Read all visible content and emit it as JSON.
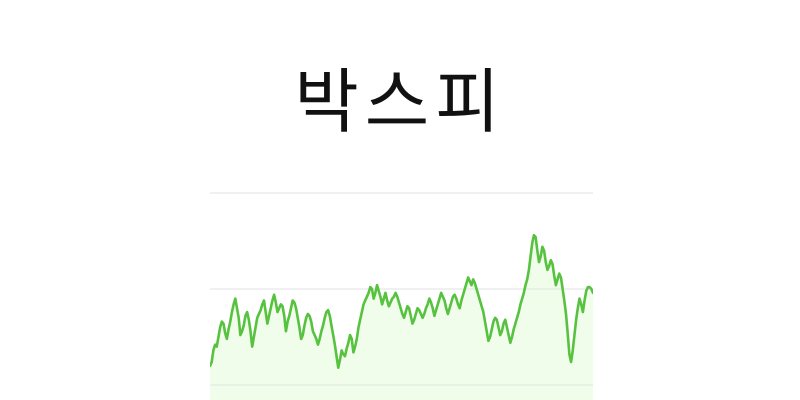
{
  "title": "박스피",
  "colors": {
    "background": "#ffffff",
    "line": "#57c23f",
    "area_fill": "#f0fdeb",
    "grid": "#e2e2e2",
    "title": "#111111"
  },
  "chart_data": {
    "type": "area",
    "title": "",
    "xlabel": "",
    "ylabel": "",
    "grid": true,
    "y_gridlines": [
      100,
      50,
      0
    ],
    "ylim": [
      0,
      100
    ],
    "series": [
      {
        "values": [
          10,
          12,
          18,
          21,
          20,
          25,
          30,
          33,
          32,
          27,
          24,
          29,
          33,
          38,
          42,
          45,
          40,
          35,
          26,
          28,
          31,
          36,
          38,
          34,
          28,
          20,
          25,
          30,
          35,
          37,
          39,
          42,
          44,
          38,
          32,
          36,
          40,
          44,
          47,
          43,
          38,
          40,
          42,
          41,
          36,
          28,
          33,
          36,
          40,
          44,
          43,
          40,
          35,
          30,
          24,
          26,
          31,
          35,
          37,
          36,
          33,
          28,
          26,
          24,
          21,
          24,
          28,
          31,
          35,
          38,
          39,
          36,
          31,
          26,
          21,
          15,
          9,
          13,
          18,
          16,
          15,
          19,
          22,
          26,
          24,
          17,
          20,
          24,
          30,
          34,
          38,
          42,
          44,
          46,
          48,
          51,
          50,
          45,
          48,
          52,
          49,
          46,
          42,
          45,
          48,
          44,
          41,
          43,
          45,
          46,
          48,
          46,
          43,
          40,
          37,
          35,
          38,
          41,
          40,
          36,
          32,
          34,
          37,
          40,
          39,
          37,
          35,
          37,
          40,
          42,
          45,
          43,
          40,
          36,
          39,
          42,
          45,
          48,
          46,
          44,
          40,
          37,
          40,
          43,
          46,
          47,
          45,
          42,
          40,
          44,
          47,
          50,
          53,
          56,
          54,
          52,
          55,
          53,
          50,
          47,
          44,
          41,
          38,
          33,
          28,
          23,
          25,
          29,
          33,
          35,
          34,
          30,
          26,
          28,
          32,
          34,
          30,
          26,
          22,
          25,
          29,
          32,
          35,
          38,
          42,
          45,
          48,
          52,
          55,
          60,
          67,
          74,
          78,
          77,
          70,
          64,
          67,
          72,
          70,
          64,
          60,
          62,
          65,
          63,
          57,
          52,
          55,
          58,
          56,
          50,
          44,
          37,
          27,
          16,
          12,
          18,
          26,
          34,
          40,
          45,
          42,
          38,
          44,
          49,
          51,
          51,
          50,
          48
        ]
      }
    ]
  }
}
